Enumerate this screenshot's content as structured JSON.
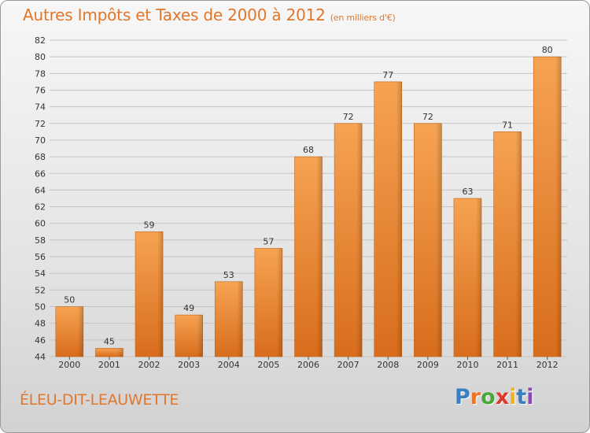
{
  "chart_data": {
    "type": "bar",
    "title": "Autres Impôts et Taxes de 2000 à 2012",
    "subtitle": "(en milliers d'€)",
    "categories": [
      "2000",
      "2001",
      "2002",
      "2003",
      "2004",
      "2005",
      "2006",
      "2007",
      "2008",
      "2009",
      "2010",
      "2011",
      "2012"
    ],
    "values": [
      50,
      45,
      59,
      49,
      53,
      57,
      68,
      72,
      77,
      72,
      63,
      71,
      80
    ],
    "ylim": [
      44,
      82
    ],
    "yticks": [
      44,
      46,
      48,
      50,
      52,
      54,
      56,
      58,
      60,
      62,
      64,
      66,
      68,
      70,
      72,
      74,
      76,
      78,
      80,
      82
    ],
    "grid": true,
    "legend": "none",
    "bar_color": "#ef8f3e"
  },
  "commune": "ÉLEU-DIT-LEAUWETTE",
  "logo": {
    "letters": [
      "P",
      "r",
      "o",
      "x",
      "i",
      "t",
      "i"
    ],
    "colors": [
      "#3a7fc4",
      "#e8752a",
      "#4aa83a",
      "#e0382e",
      "#f2b21c",
      "#3a7fc4",
      "#8a4ab5"
    ]
  }
}
